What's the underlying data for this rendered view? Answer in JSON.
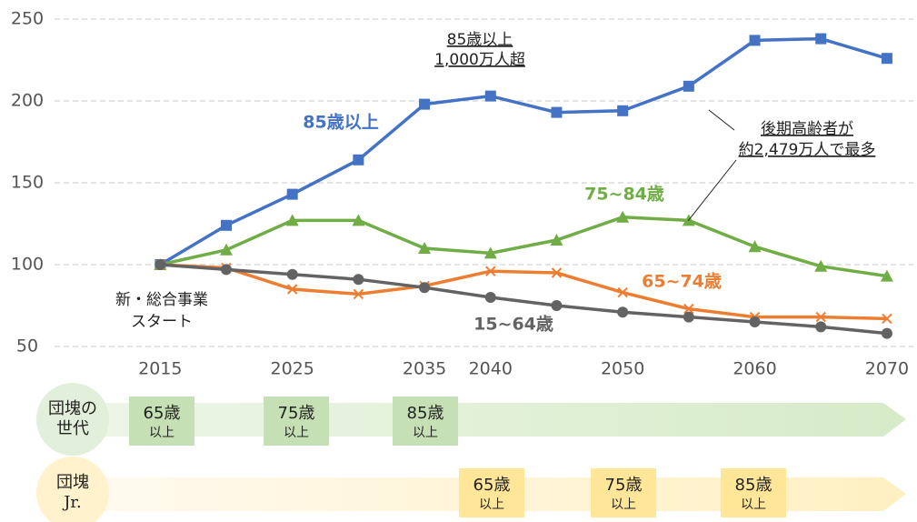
{
  "chart_data": {
    "type": "line",
    "x": [
      2015,
      2020,
      2025,
      2030,
      2035,
      2040,
      2045,
      2050,
      2055,
      2060,
      2065,
      2070
    ],
    "xlim": [
      2007,
      2072
    ],
    "xticks": [
      2015,
      2025,
      2035,
      2040,
      2050,
      2060,
      2070
    ],
    "ylim": [
      50,
      250
    ],
    "yticks": [
      50,
      100,
      150,
      200,
      250
    ],
    "grid": true,
    "series": [
      {
        "name": "85歳以上",
        "color": "#4472c4",
        "marker": "square",
        "values": [
          100,
          124,
          143,
          164,
          198,
          203,
          193,
          194,
          209,
          237,
          238,
          226
        ]
      },
      {
        "name": "75~84歳",
        "color": "#70ad47",
        "marker": "triangle",
        "values": [
          100,
          109,
          127,
          127,
          110,
          107,
          115,
          129,
          127,
          111,
          99,
          93
        ]
      },
      {
        "name": "65~74歳",
        "color": "#ed7d31",
        "marker": "x",
        "values": [
          100,
          98,
          85,
          82,
          87,
          96,
          95,
          83,
          73,
          68,
          68,
          67
        ]
      },
      {
        "name": "15~64歳",
        "color": "#636363",
        "marker": "circle",
        "values": [
          100,
          97,
          94,
          91,
          86,
          80,
          75,
          71,
          68,
          65,
          62,
          58
        ]
      }
    ],
    "annotations": [
      [
        "85歳以上",
        "1,000万人超"
      ],
      [
        "後期高齢者が",
        "約2,479万人で最多"
      ],
      [
        "新・総合事業",
        "スタート"
      ]
    ]
  },
  "timeline": {
    "rows": [
      {
        "label": [
          "団塊の",
          "世代"
        ],
        "boxes": [
          [
            "65歳",
            "以上"
          ],
          [
            "75歳",
            "以上"
          ],
          [
            "85歳",
            "以上"
          ]
        ]
      },
      {
        "label": [
          "団塊",
          "Jr."
        ],
        "boxes": [
          [
            "65歳",
            "以上"
          ],
          [
            "75歳",
            "以上"
          ],
          [
            "85歳",
            "以上"
          ]
        ]
      }
    ]
  }
}
